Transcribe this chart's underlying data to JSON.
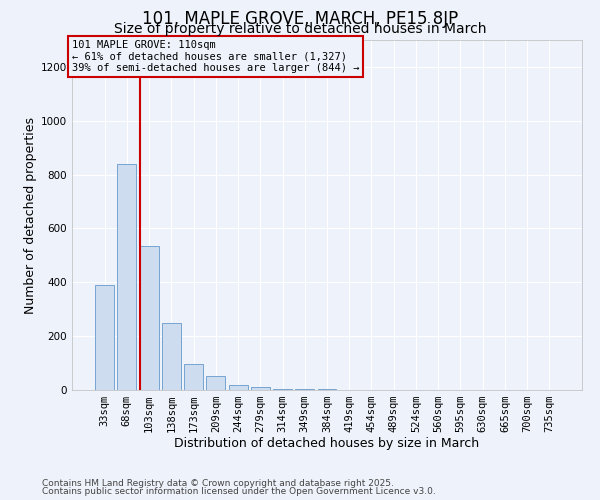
{
  "title": "101, MAPLE GROVE, MARCH, PE15 8JP",
  "subtitle": "Size of property relative to detached houses in March",
  "xlabel": "Distribution of detached houses by size in March",
  "ylabel": "Number of detached properties",
  "bar_labels": [
    "33sqm",
    "68sqm",
    "103sqm",
    "138sqm",
    "173sqm",
    "209sqm",
    "244sqm",
    "279sqm",
    "314sqm",
    "349sqm",
    "384sqm",
    "419sqm",
    "454sqm",
    "489sqm",
    "524sqm",
    "560sqm",
    "595sqm",
    "630sqm",
    "665sqm",
    "700sqm",
    "735sqm"
  ],
  "bar_values": [
    390,
    840,
    535,
    248,
    97,
    52,
    20,
    12,
    5,
    2,
    2,
    0,
    0,
    0,
    0,
    0,
    0,
    0,
    0,
    0,
    0
  ],
  "bar_color": "#cddcef",
  "bar_edge_color": "#6699cc",
  "vline_color": "#cc0000",
  "ylim": [
    0,
    1300
  ],
  "yticks": [
    0,
    200,
    400,
    600,
    800,
    1000,
    1200
  ],
  "annotation_line1": "101 MAPLE GROVE: 110sqm",
  "annotation_line2": "← 61% of detached houses are smaller (1,327)",
  "annotation_line3": "39% of semi-detached houses are larger (844) →",
  "annotation_box_color": "#cc0000",
  "footer_line1": "Contains HM Land Registry data © Crown copyright and database right 2025.",
  "footer_line2": "Contains public sector information licensed under the Open Government Licence v3.0.",
  "background_color": "#eef2fa",
  "grid_color": "#ffffff",
  "title_fontsize": 12,
  "subtitle_fontsize": 10,
  "axis_label_fontsize": 9,
  "tick_fontsize": 7.5,
  "footer_fontsize": 6.5
}
